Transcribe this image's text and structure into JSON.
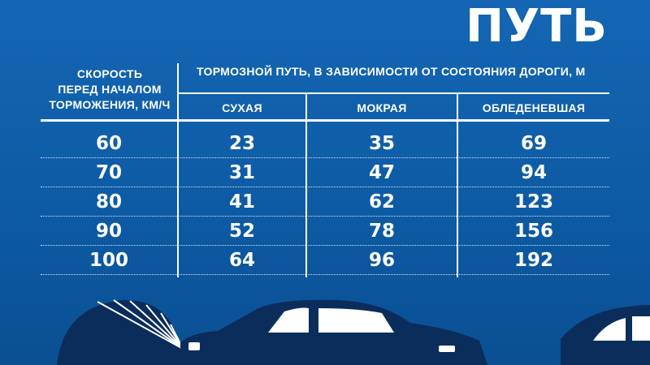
{
  "title": "ПУТЬ",
  "table": {
    "speed_header": [
      "СКОРОСТЬ",
      "ПЕРЕД НАЧАЛОМ",
      "ТОРМОЖЕНИЯ, КМ/Ч"
    ],
    "main_header": "ТОРМОЗНОЙ ПУТЬ, В ЗАВИСИМОСТИ ОТ СОСТОЯНИЯ ДОРОГИ, М",
    "columns": [
      "СУХАЯ",
      "МОКРАЯ",
      "ОБЛЕДЕНЕВШАЯ"
    ],
    "rows": [
      [
        "60",
        "23",
        "35",
        "69"
      ],
      [
        "70",
        "31",
        "47",
        "94"
      ],
      [
        "80",
        "41",
        "62",
        "123"
      ],
      [
        "90",
        "52",
        "78",
        "156"
      ],
      [
        "100",
        "64",
        "96",
        "192"
      ]
    ]
  },
  "colors": {
    "background": "#0d5ea8",
    "text": "#ffffff",
    "car": "#0a2d5c"
  }
}
